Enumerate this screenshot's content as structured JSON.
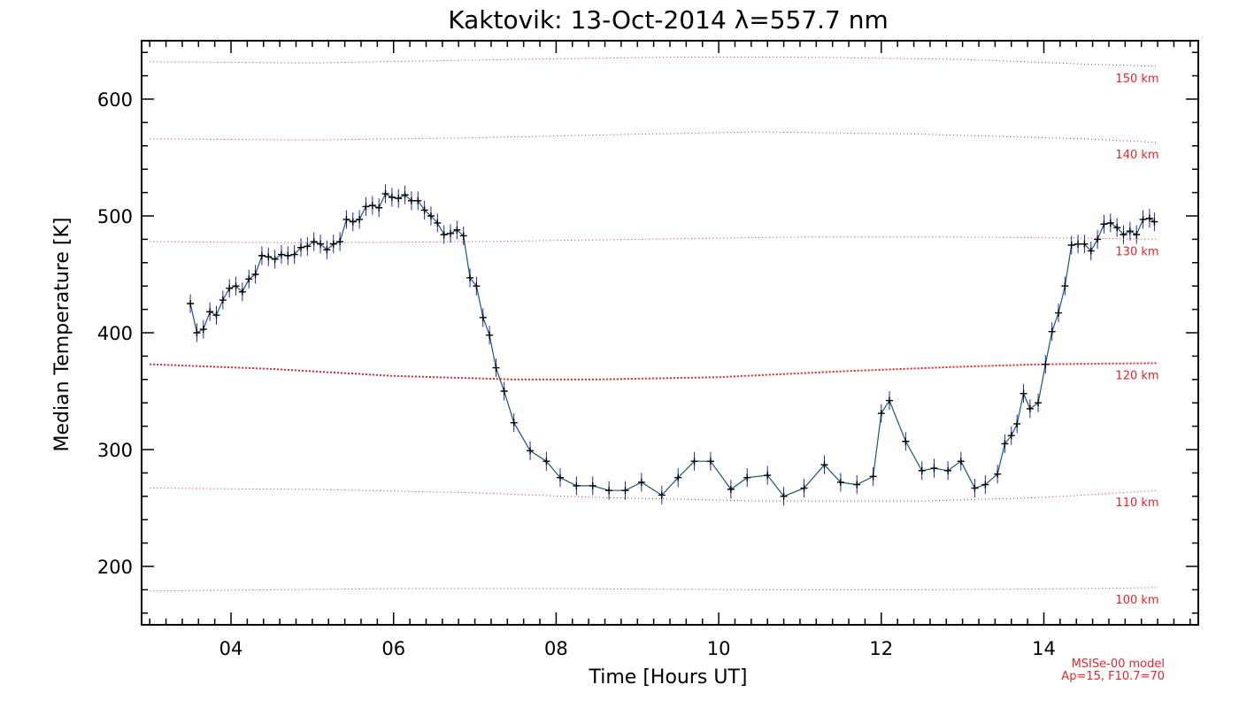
{
  "chart_data": {
    "type": "line",
    "title": "Kaktovik: 13-Oct-2014 λ=557.7 nm",
    "xlabel": "Time [Hours UT]",
    "ylabel": "Median Temperature [K]",
    "xlim": [
      2.9,
      15.9
    ],
    "ylim": [
      150,
      650
    ],
    "x_ticks": [
      4,
      6,
      8,
      10,
      12,
      14
    ],
    "x_tick_labels": [
      "04",
      "06",
      "08",
      "10",
      "12",
      "14"
    ],
    "y_ticks": [
      200,
      300,
      400,
      500,
      600
    ],
    "y_tick_labels": [
      "200",
      "300",
      "400",
      "500",
      "600"
    ],
    "model_note": [
      "MSISe-00 model",
      "Ap=15, F10.7=70"
    ],
    "series": [
      {
        "name": "Median temperature",
        "color": "#000000",
        "line_color": "#1a5a6a",
        "error_color": "#2222cc",
        "error": 8,
        "x": [
          3.5,
          3.58,
          3.66,
          3.74,
          3.82,
          3.9,
          3.98,
          4.06,
          4.14,
          4.22,
          4.3,
          4.38,
          4.46,
          4.54,
          4.62,
          4.7,
          4.78,
          4.86,
          4.94,
          5.02,
          5.1,
          5.18,
          5.26,
          5.34,
          5.42,
          5.5,
          5.58,
          5.66,
          5.74,
          5.82,
          5.9,
          5.98,
          6.06,
          6.14,
          6.22,
          6.3,
          6.38,
          6.46,
          6.54,
          6.62,
          6.7,
          6.78,
          6.86,
          6.94,
          7.02,
          7.1,
          7.18,
          7.26,
          7.36,
          7.48,
          7.68,
          7.88,
          8.05,
          8.25,
          8.45,
          8.65,
          8.85,
          9.05,
          9.3,
          9.5,
          9.7,
          9.9,
          10.15,
          10.35,
          10.6,
          10.8,
          11.05,
          11.3,
          11.5,
          11.7,
          11.9,
          12.0,
          12.1,
          12.3,
          12.5,
          12.65,
          12.82,
          12.98,
          13.15,
          13.28,
          13.43,
          13.52,
          13.6,
          13.67,
          13.75,
          13.83,
          13.93,
          14.02,
          14.1,
          14.18,
          14.26,
          14.34,
          14.42,
          14.5,
          14.58,
          14.66,
          14.74,
          14.82,
          14.9,
          14.98,
          15.06,
          15.14,
          15.22,
          15.3,
          15.36
        ],
        "y": [
          425,
          400,
          403,
          418,
          415,
          428,
          438,
          440,
          435,
          446,
          450,
          466,
          465,
          463,
          467,
          466,
          467,
          473,
          474,
          478,
          476,
          471,
          476,
          478,
          497,
          495,
          497,
          508,
          509,
          507,
          519,
          516,
          515,
          518,
          513,
          513,
          505,
          500,
          494,
          484,
          485,
          488,
          483,
          447,
          440,
          413,
          398,
          370,
          350,
          323,
          299,
          290,
          276,
          269,
          269,
          265,
          265,
          272,
          261,
          276,
          290,
          290,
          266,
          276,
          278,
          260,
          267,
          287,
          272,
          270,
          277,
          331,
          342,
          307,
          282,
          284,
          282,
          290,
          267,
          270,
          279,
          305,
          312,
          322,
          348,
          335,
          340,
          373,
          401,
          417,
          440,
          475,
          476,
          476,
          470,
          480,
          493,
          494,
          490,
          484,
          487,
          484,
          497,
          498,
          495
        ]
      }
    ],
    "model_curves": [
      {
        "label": "100 km",
        "color": "#e0282c",
        "bold": false,
        "x": [
          3.0,
          6.0,
          8.0,
          10.5,
          12.5,
          14.5,
          15.4
        ],
        "y": [
          179,
          181,
          181,
          180,
          180,
          181,
          182
        ]
      },
      {
        "label": "110 km",
        "color": "#e0282c",
        "bold": false,
        "x": [
          3.0,
          5.0,
          7.0,
          8.5,
          10.5,
          12.5,
          14.0,
          15.4
        ],
        "y": [
          267,
          266,
          263,
          259,
          256,
          256,
          259,
          265
        ]
      },
      {
        "label": "120 km",
        "color": "#e0282c",
        "bold": true,
        "x": [
          3.0,
          4.5,
          6.0,
          7.5,
          8.5,
          10.0,
          11.5,
          13.0,
          14.0,
          15.4
        ],
        "y": [
          373,
          369,
          363,
          360,
          360,
          362,
          367,
          371,
          373,
          374
        ]
      },
      {
        "label": "130 km",
        "color": "#e0282c",
        "bold": false,
        "x": [
          3.0,
          5.0,
          7.0,
          9.0,
          11.0,
          13.0,
          14.5,
          15.4
        ],
        "y": [
          478,
          477,
          478,
          480,
          482,
          482,
          481,
          480
        ]
      },
      {
        "label": "140 km",
        "color": "#e0282c",
        "bold": false,
        "x": [
          3.0,
          5.0,
          7.0,
          9.0,
          10.5,
          12.5,
          14.5,
          15.4
        ],
        "y": [
          566,
          565,
          567,
          570,
          572,
          570,
          566,
          563
        ]
      },
      {
        "label": "150 km",
        "color": "#e0282c",
        "bold": false,
        "x": [
          3.0,
          5.0,
          7.5,
          9.5,
          11.0,
          13.0,
          14.5,
          15.4
        ],
        "y": [
          632,
          631,
          634,
          636,
          636,
          634,
          630,
          628
        ]
      }
    ]
  }
}
